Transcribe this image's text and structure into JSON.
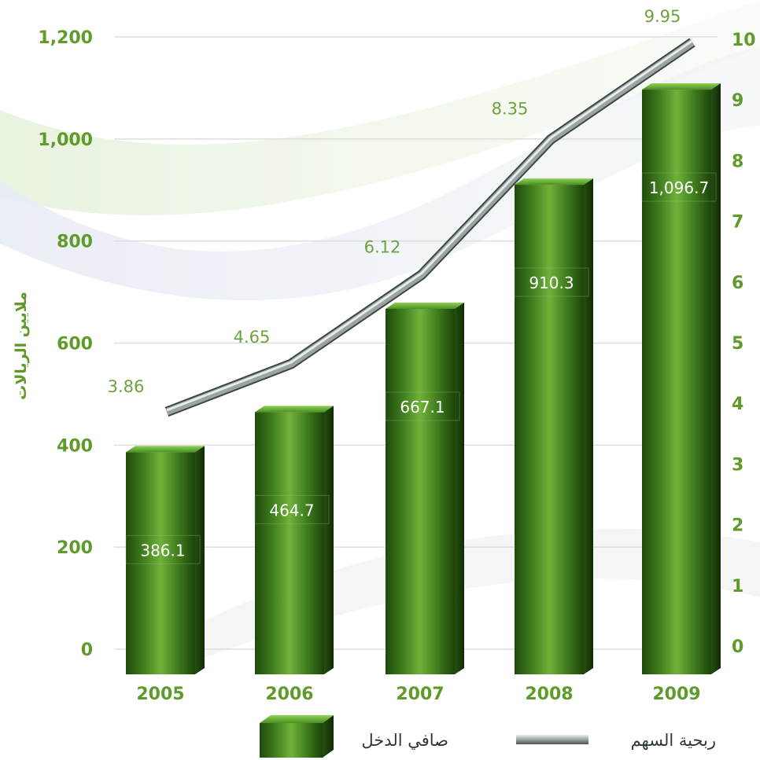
{
  "chart_data": {
    "type": "bar",
    "categories": [
      "2005",
      "2006",
      "2007",
      "2008",
      "2009"
    ],
    "series": [
      {
        "name": "صافي الدخل",
        "type": "bar",
        "axis": "left",
        "values": [
          386.1,
          464.7,
          667.1,
          910.3,
          1096.7
        ],
        "labels": [
          "386.1",
          "464.7",
          "667.1",
          "910.3",
          "1,096.7"
        ],
        "color": "#3f7a1f"
      },
      {
        "name": "ربحية السهم",
        "type": "line",
        "axis": "right",
        "values": [
          3.86,
          4.65,
          6.12,
          8.35,
          9.95
        ],
        "labels": [
          "3.86",
          "4.65",
          "6.12",
          "8.35",
          "9.95"
        ],
        "color": "#8f9a96"
      }
    ],
    "ylabel": "ملايين الريالات",
    "y_left": {
      "ylim": [
        0,
        1200
      ],
      "ticks": [
        0,
        200,
        400,
        600,
        800,
        1000,
        1200
      ],
      "tick_labels": [
        "0",
        "200",
        "400",
        "600",
        "800",
        "1,000",
        "1,200"
      ]
    },
    "y_right": {
      "ylim": [
        0,
        10
      ],
      "ticks": [
        0,
        1,
        2,
        3,
        4,
        5,
        6,
        7,
        8,
        9,
        10
      ],
      "tick_labels": [
        "0",
        "1",
        "2",
        "3",
        "4",
        "5",
        "6",
        "7",
        "8",
        "9",
        "10"
      ]
    },
    "grid": true,
    "legend_position": "bottom",
    "colors": {
      "tick_text": "#5f9a2a",
      "bar_dark": "#1f4a0c",
      "bar_light": "#6fb23a",
      "line": "#8f9a96",
      "grid": "#dddddd"
    }
  }
}
